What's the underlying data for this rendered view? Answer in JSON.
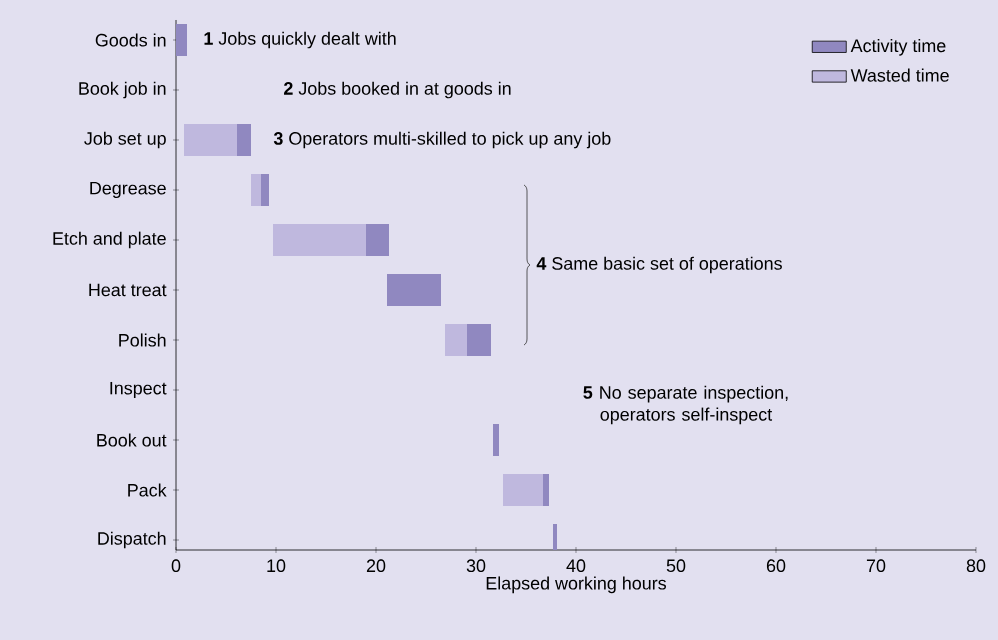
{
  "chart_data": {
    "type": "bar",
    "orientation": "horizontal",
    "categories": [
      "Goods in",
      "Book job in",
      "Job set up",
      "Degrease",
      "Etch and plate",
      "Heat treat",
      "Polish",
      "Inspect",
      "Book out",
      "Pack",
      "Dispatch"
    ],
    "series": [
      {
        "name": "Wasted time",
        "color": "#bfb8de",
        "base": [
          null,
          null,
          0.8,
          7.5,
          9.7,
          null,
          26.9,
          null,
          null,
          32.7,
          null
        ],
        "values": [
          null,
          null,
          5.3,
          1,
          9.3,
          null,
          2.2,
          null,
          null,
          4,
          null
        ]
      },
      {
        "name": "Activity time",
        "color": "#9088c0",
        "base": [
          0,
          null,
          6.1,
          8.5,
          19,
          21.1,
          29.1,
          null,
          31.7,
          36.7,
          37.7
        ],
        "values": [
          1.1,
          null,
          1.4,
          0.8,
          2.3,
          5.4,
          2.4,
          null,
          0.6,
          0.6,
          0.4
        ]
      }
    ],
    "xlabel": "Elapsed working hours",
    "xlim": [
      0,
      80
    ],
    "xticks": [
      0,
      10,
      20,
      30,
      40,
      50,
      60,
      70,
      80
    ],
    "legend": "top right",
    "annotations": [
      "**1** Jobs quickly dealt with",
      "**2** Jobs booked in at goods in",
      "**3** Operators multi-skilled to pick up any job",
      "**4** Same basic set of operations",
      "**5** No separate inspection, operators self-inspect"
    ]
  }
}
